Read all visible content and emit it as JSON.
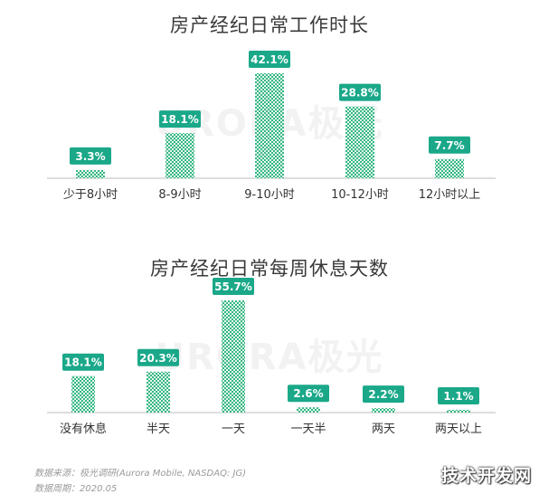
{
  "chart_data": [
    {
      "type": "bar",
      "title": "房产经纪日常工作时长",
      "categories": [
        "少于8小时",
        "8-9小时",
        "9-10小时",
        "10-12小时",
        "12小时以上"
      ],
      "values": [
        3.3,
        18.1,
        42.1,
        28.8,
        7.7
      ],
      "value_labels": [
        "3.3%",
        "18.1%",
        "42.1%",
        "28.8%",
        "7.7%"
      ],
      "xlabel": "",
      "ylabel": "",
      "ylim": [
        0,
        42.1
      ],
      "grid": false,
      "color": "#35b783",
      "label_color": "#1aa889"
    },
    {
      "type": "bar",
      "title": "房产经纪日常每周休息天数",
      "categories": [
        "没有休息",
        "半天",
        "一天",
        "一天半",
        "两天",
        "两天以上"
      ],
      "values": [
        18.1,
        20.3,
        55.7,
        2.6,
        2.2,
        1.1
      ],
      "value_labels": [
        "18.1%",
        "20.3%",
        "55.7%",
        "2.6%",
        "2.2%",
        "1.1%"
      ],
      "xlabel": "",
      "ylabel": "",
      "ylim": [
        0,
        55.7
      ],
      "grid": false,
      "color": "#35b783",
      "label_color": "#1aa889"
    }
  ],
  "watermark": "URORA极光",
  "footer": {
    "source": "数据来源：极光调研(Aurora Mobile, NASDAQ: JG)",
    "period": "数据周期：2020.05"
  },
  "corner_mark": "技术开发网"
}
